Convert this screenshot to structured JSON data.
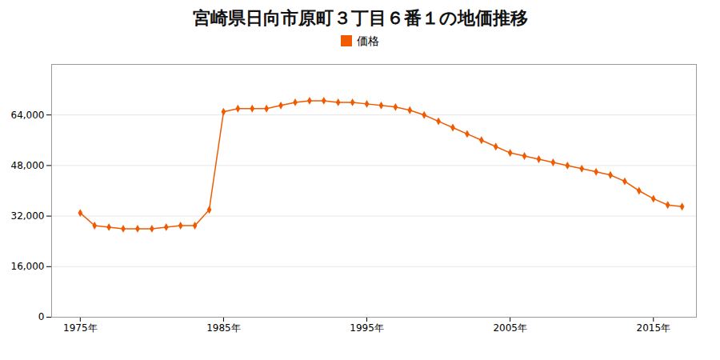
{
  "chart_data": {
    "type": "line",
    "title": "宮崎県日向市原町３丁目６番１の地価推移",
    "x": [
      1975,
      1976,
      1977,
      1978,
      1979,
      1980,
      1981,
      1982,
      1983,
      1984,
      1985,
      1986,
      1987,
      1988,
      1989,
      1990,
      1991,
      1992,
      1993,
      1994,
      1995,
      1996,
      1997,
      1998,
      1999,
      2000,
      2001,
      2002,
      2003,
      2004,
      2005,
      2006,
      2007,
      2008,
      2009,
      2010,
      2011,
      2012,
      2013,
      2014,
      2015,
      2016,
      2017
    ],
    "series": [
      {
        "name": "価格",
        "color": "#F05A00",
        "marker": "diamond",
        "values": [
          33000,
          29000,
          28500,
          28000,
          28000,
          28000,
          28500,
          29000,
          29000,
          34000,
          65000,
          66000,
          66000,
          66000,
          67000,
          68000,
          68500,
          68500,
          68000,
          68000,
          67500,
          67000,
          66500,
          65500,
          64000,
          62000,
          60000,
          58000,
          56000,
          54000,
          52000,
          51000,
          50000,
          49000,
          48000,
          47000,
          46000,
          45000,
          43000,
          40000,
          37500,
          35500,
          35000
        ]
      }
    ],
    "xlim": [
      1973,
      2018
    ],
    "xticks": [
      {
        "value": 1975,
        "label": "1975年"
      },
      {
        "value": 1985,
        "label": "1985年"
      },
      {
        "value": 1995,
        "label": "1995年"
      },
      {
        "value": 2005,
        "label": "2005年"
      },
      {
        "value": 2015,
        "label": "2015年"
      }
    ],
    "ylim": [
      0,
      80000
    ],
    "yticks": [
      0,
      {
        "value": 16000,
        "label": "16,000"
      },
      {
        "value": 32000,
        "label": "32,000"
      },
      {
        "value": 48000,
        "label": "48,000"
      },
      {
        "value": 64000,
        "label": "64,000"
      }
    ],
    "grid": true,
    "legend": "top"
  }
}
